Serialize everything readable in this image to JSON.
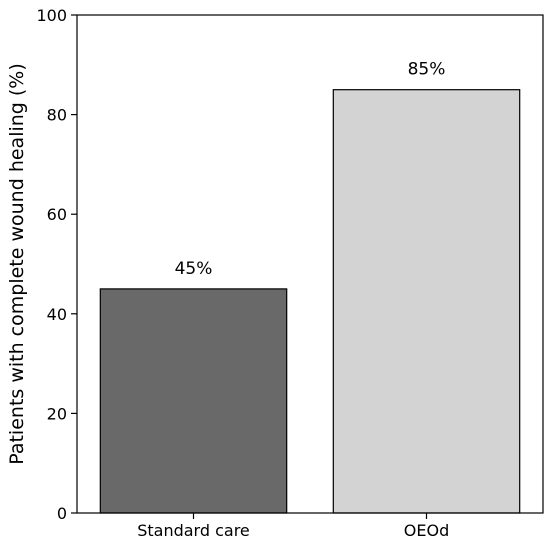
{
  "chart_data": {
    "type": "bar",
    "title": "",
    "xlabel": "",
    "ylabel": "Patients with complete wound healing (%)",
    "categories": [
      "Standard care",
      "OEOd"
    ],
    "values": [
      45,
      85
    ],
    "data_labels": [
      "45%",
      "85%"
    ],
    "ylim": [
      0,
      100
    ],
    "yticks": [
      0,
      20,
      40,
      60,
      80,
      100
    ],
    "bar_colors": [
      "#696969",
      "#d3d3d3"
    ],
    "bar_edge_color": "#000000",
    "grid": false,
    "legend": "none"
  }
}
